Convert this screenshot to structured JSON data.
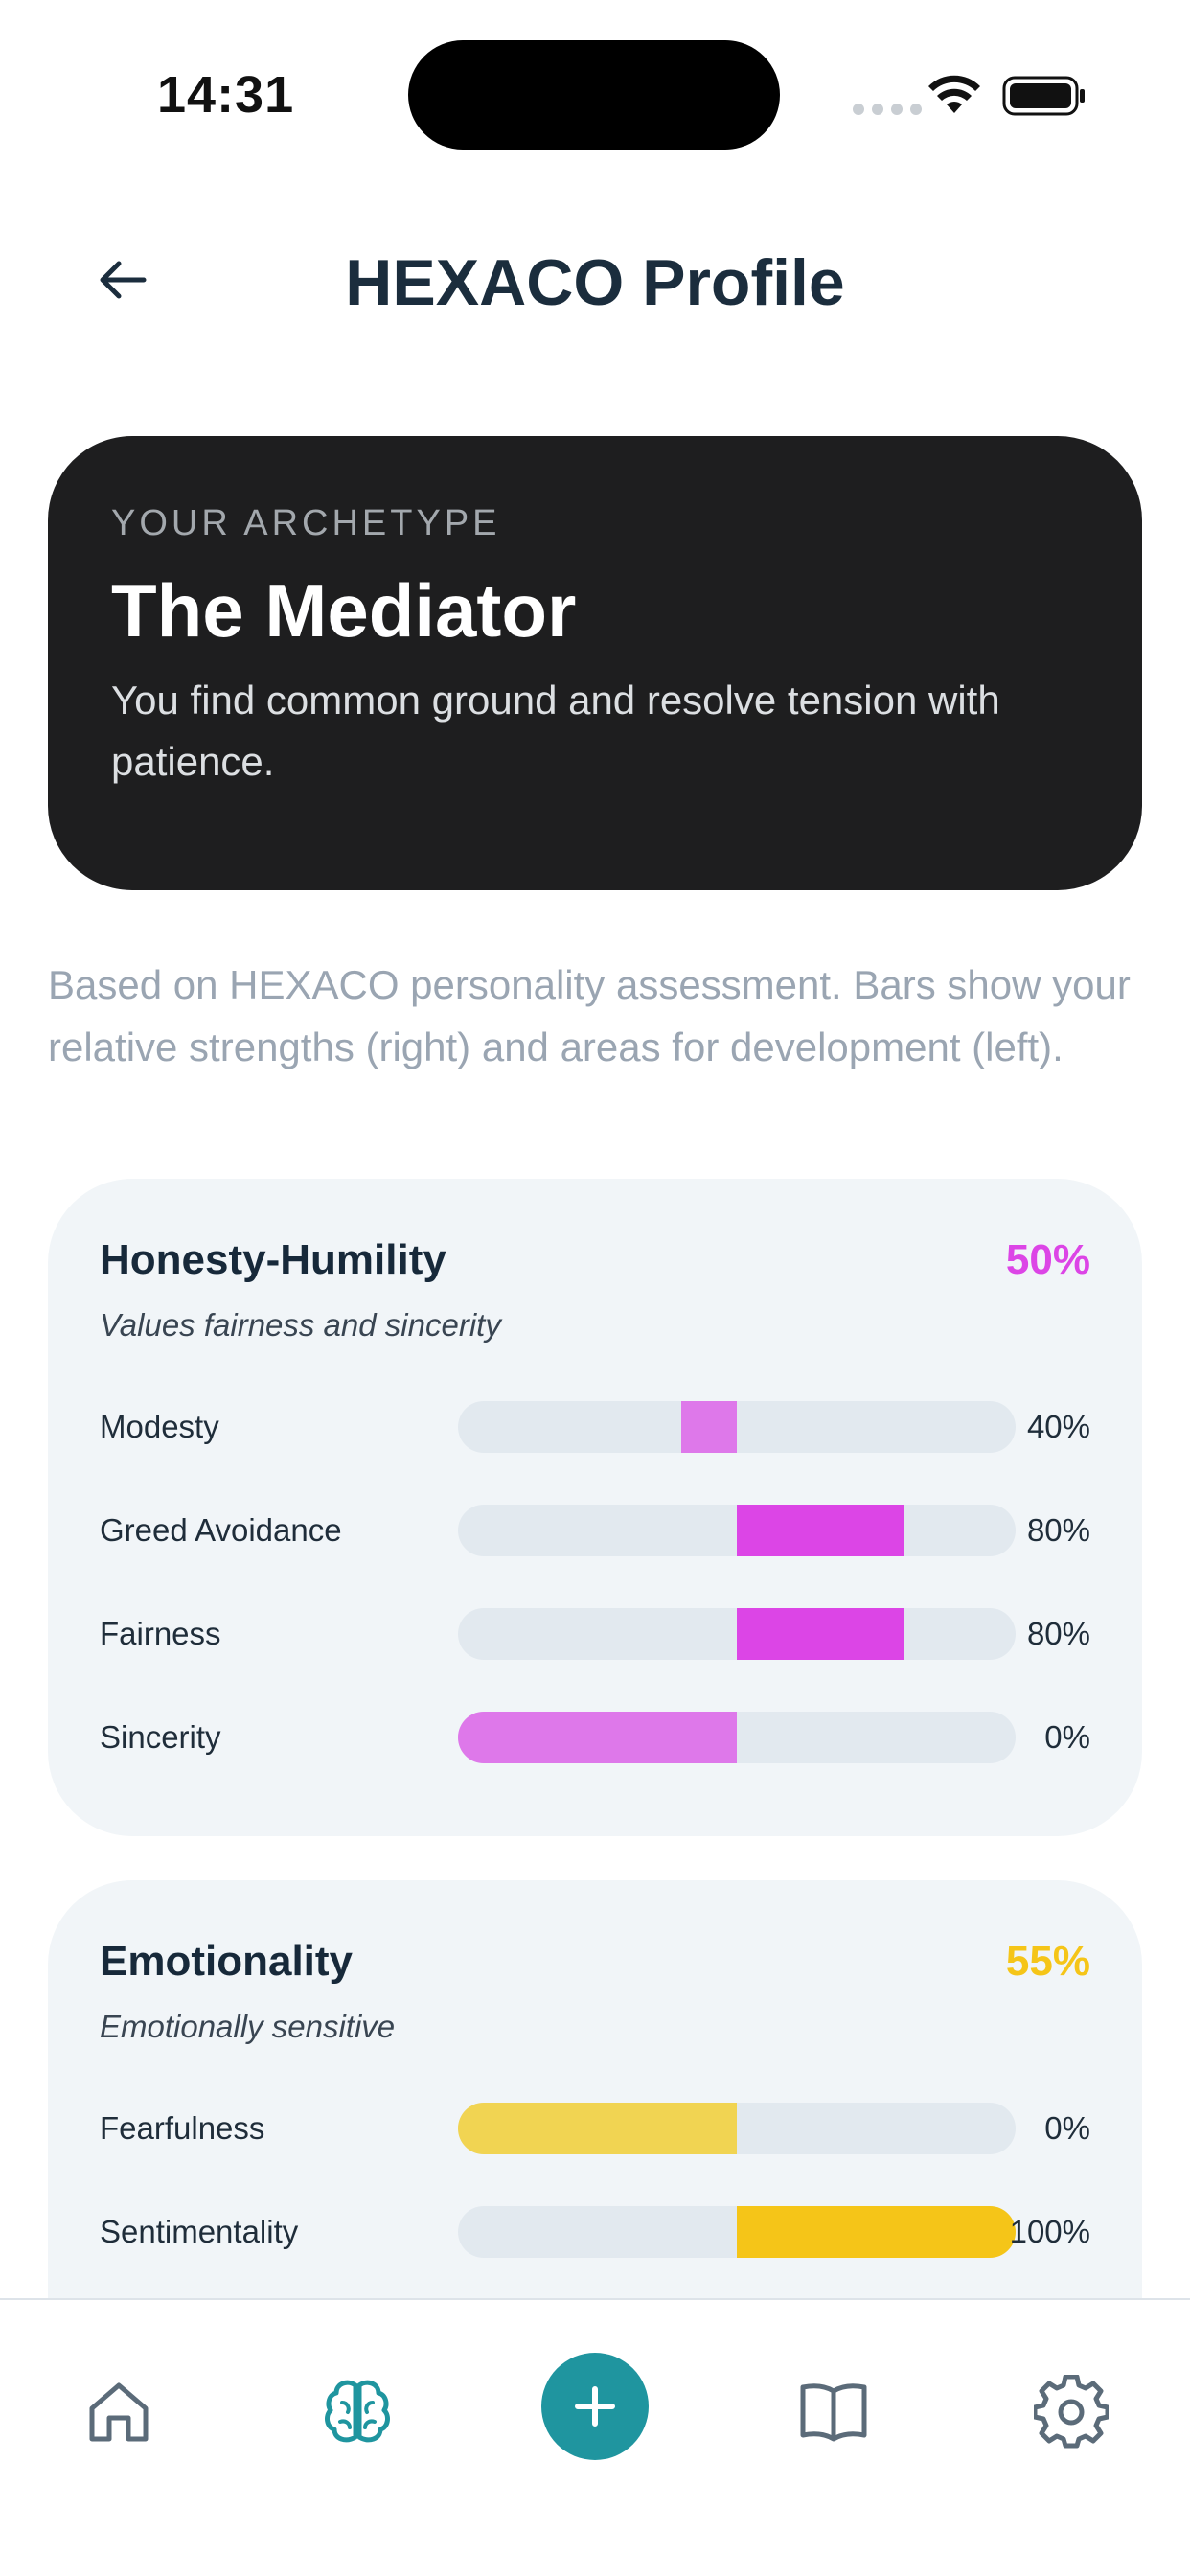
{
  "status": {
    "time": "14:31"
  },
  "header": {
    "title": "HEXACO Profile"
  },
  "archetype": {
    "eyebrow": "YOUR ARCHETYPE",
    "name": "The Mediator",
    "description": "You find common ground and resolve tension with patience."
  },
  "intro": "Based on HEXACO personality assessment. Bars show your relative strengths (right) and areas for development (left).",
  "traits": [
    {
      "name": "Honesty-Humility",
      "score": "50%",
      "subtitle": "Values fairness and sincerity",
      "color": "#dc45e6",
      "color_light": "#de78ea",
      "facets": [
        {
          "label": "Modesty",
          "value": "40%",
          "level": 0.4
        },
        {
          "label": "Greed Avoidance",
          "value": "80%",
          "level": 0.8
        },
        {
          "label": "Fairness",
          "value": "80%",
          "level": 0.8
        },
        {
          "label": "Sincerity",
          "value": "0%",
          "level": 0.0
        }
      ]
    },
    {
      "name": "Emotionality",
      "score": "55%",
      "subtitle": "Emotionally sensitive",
      "color": "#f5c518",
      "color_light": "#f1d452",
      "facets": [
        {
          "label": "Fearfulness",
          "value": "0%",
          "level": 0.0
        },
        {
          "label": "Sentimentality",
          "value": "100%",
          "level": 1.0
        }
      ]
    }
  ],
  "nav": {
    "items": [
      "home-icon",
      "brain-icon",
      "plus-icon",
      "book-icon",
      "gear-icon"
    ],
    "active": "brain-icon",
    "accent": "#1f959f"
  }
}
